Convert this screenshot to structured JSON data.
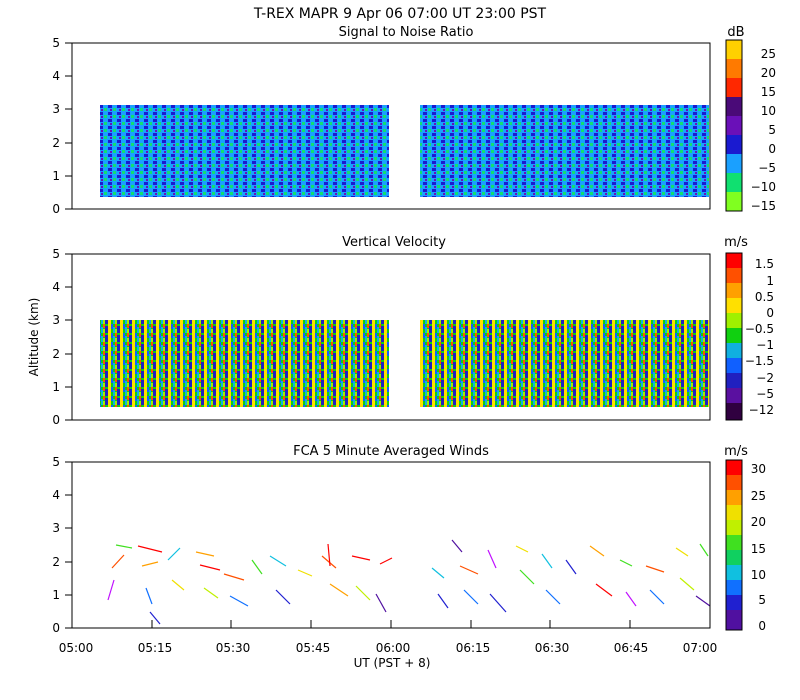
{
  "figure": {
    "title": "T-REX  MAPR  9 Apr 06  07:00 UT  23:00  PST",
    "ylabel": "Altitude (km)",
    "xlabel": "UT  (PST + 8)",
    "x_ticks": [
      "05:00",
      "05:15",
      "05:30",
      "05:45",
      "06:00",
      "06:15",
      "06:30",
      "06:45",
      "07:00"
    ]
  },
  "chart_data": [
    {
      "type": "heatmap",
      "title": "Signal to Noise Ratio",
      "ylabel": "Altitude (km)",
      "xlabel": "UT  (PST + 8)",
      "xlim": [
        "05:00",
        "07:00"
      ],
      "ylim": [
        0,
        5
      ],
      "y_ticks": [
        "0",
        "1",
        "2",
        "3",
        "4",
        "5"
      ],
      "data_gap": [
        "05:59",
        "06:05"
      ],
      "colorbar": {
        "unit": "dB",
        "tick_labels": [
          "25",
          "20",
          "15",
          "10",
          "5",
          "0",
          "−5",
          "−10",
          "−15"
        ],
        "tick_values": [
          25,
          20,
          15,
          10,
          5,
          0,
          -5,
          -10,
          -15
        ],
        "colors": [
          "#ffd000",
          "#ff7a00",
          "#ff2800",
          "#4a0a78",
          "#6a10b8",
          "#1a1ad0",
          "#1aa0ff",
          "#10e070",
          "#80ff20"
        ]
      }
    },
    {
      "type": "heatmap",
      "title": "Vertical Velocity",
      "ylabel": "Altitude (km)",
      "xlabel": "UT  (PST + 8)",
      "xlim": [
        "05:00",
        "07:00"
      ],
      "ylim": [
        0,
        5
      ],
      "y_ticks": [
        "0",
        "1",
        "2",
        "3",
        "4",
        "5"
      ],
      "data_gap": [
        "05:59",
        "06:05"
      ],
      "colorbar": {
        "unit": "m/s",
        "tick_labels": [
          "1.5",
          "1",
          "0.5",
          "0",
          "−0.5",
          "−1",
          "−1.5",
          "−2",
          "−5",
          "−12"
        ],
        "tick_values": [
          1.5,
          1,
          0.5,
          0,
          -0.5,
          -1,
          -1.5,
          -2,
          -5,
          -12
        ],
        "colors": [
          "#ff0000",
          "#ff5000",
          "#ffa000",
          "#ffe000",
          "#a0f000",
          "#10d010",
          "#10b0e0",
          "#1060ff",
          "#2020c0",
          "#5a10a0",
          "#300040"
        ]
      }
    },
    {
      "type": "scatter",
      "title": "FCA 5 Minute Averaged Winds",
      "ylabel": "Altitude (km)",
      "xlabel": "UT  (PST + 8)",
      "xlim": [
        "05:00",
        "07:00"
      ],
      "ylim": [
        0,
        5
      ],
      "y_ticks": [
        "0",
        "1",
        "2",
        "3",
        "4",
        "5"
      ],
      "data_gap": [
        "05:59",
        "06:05"
      ],
      "wind_barb_altitude_range_km": [
        0.2,
        2.6
      ],
      "colorbar": {
        "unit": "m/s",
        "tick_labels": [
          "30",
          "25",
          "20",
          "15",
          "10",
          "5",
          "0"
        ],
        "tick_values": [
          30,
          25,
          20,
          15,
          10,
          5,
          0
        ],
        "colors": [
          "#ff0000",
          "#ff5000",
          "#ffa000",
          "#f0e000",
          "#c0f000",
          "#40e020",
          "#10d060",
          "#10c0e0",
          "#1070ff",
          "#2020d0",
          "#5010a0"
        ]
      }
    }
  ]
}
